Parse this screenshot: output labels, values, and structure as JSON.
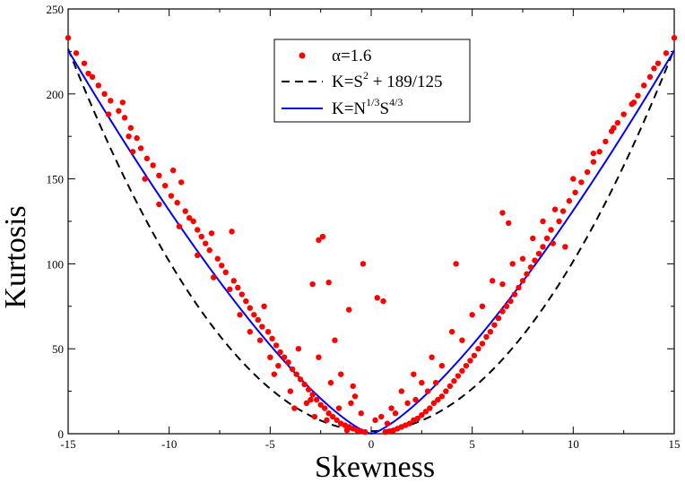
{
  "chart_data": {
    "type": "scatter",
    "xlabel": "Skewness",
    "ylabel": "Kurtosis",
    "xlim": [
      -15,
      15
    ],
    "ylim": [
      0,
      250
    ],
    "x_ticks": [
      "-15",
      "-10",
      "-5",
      "0",
      "5",
      "10",
      "15"
    ],
    "y_ticks": [
      "0",
      "50",
      "100",
      "150",
      "200",
      "250"
    ],
    "legend_position": "top-center",
    "legend": [
      {
        "marker": "dot",
        "color": "#ff0000",
        "parts": [
          "α=1.6"
        ]
      },
      {
        "marker": "dashed-line",
        "color": "#000000",
        "parts": [
          "K=S",
          "2",
          " + 189/125"
        ]
      },
      {
        "marker": "solid-line",
        "color": "#0000ff",
        "parts": [
          "K=N",
          "1/3",
          "S",
          "4/3"
        ]
      }
    ],
    "curves": [
      {
        "name": "K=S^2 + 189/125",
        "style": "dashed",
        "color": "#000000",
        "formula": "S^2 + 1.512"
      },
      {
        "name": "K=N^(1/3) S^(4/3)",
        "style": "solid",
        "color": "#0000ff",
        "formula": "|S|^(4/3) * 6.1"
      }
    ],
    "series": [
      {
        "name": "α=1.6",
        "color": "#ff0000",
        "points": [
          [
            -15,
            233
          ],
          [
            -14.6,
            224
          ],
          [
            -14.2,
            218
          ],
          [
            -13.8,
            210
          ],
          [
            -13.5,
            205
          ],
          [
            -13.2,
            200
          ],
          [
            -12.9,
            196
          ],
          [
            -12.5,
            190
          ],
          [
            -12.2,
            186
          ],
          [
            -12.3,
            195
          ],
          [
            -11.9,
            180
          ],
          [
            -11.6,
            174
          ],
          [
            -11.8,
            166
          ],
          [
            -11.4,
            168
          ],
          [
            -11.1,
            162
          ],
          [
            -10.8,
            158
          ],
          [
            -10.5,
            152
          ],
          [
            -9.8,
            155
          ],
          [
            -10.2,
            146
          ],
          [
            -9.9,
            140
          ],
          [
            -9.6,
            136
          ],
          [
            -9.4,
            148
          ],
          [
            -9.2,
            131
          ],
          [
            -9.0,
            127
          ],
          [
            -8.8,
            125
          ],
          [
            -8.6,
            120
          ],
          [
            -8.4,
            116
          ],
          [
            -8.2,
            112
          ],
          [
            -8.0,
            108
          ],
          [
            -7.9,
            118
          ],
          [
            -7.6,
            103
          ],
          [
            -7.4,
            99
          ],
          [
            -7.2,
            95
          ],
          [
            -6.9,
            119
          ],
          [
            -6.8,
            90
          ],
          [
            -6.6,
            86
          ],
          [
            -6.4,
            82
          ],
          [
            -6.2,
            78
          ],
          [
            -6.0,
            74
          ],
          [
            -5.8,
            70
          ],
          [
            -5.6,
            67
          ],
          [
            -5.4,
            63
          ],
          [
            -5.3,
            75
          ],
          [
            -5.1,
            60
          ],
          [
            -4.9,
            56
          ],
          [
            -4.7,
            52
          ],
          [
            -4.5,
            48
          ],
          [
            -4.3,
            45
          ],
          [
            -4.1,
            42
          ],
          [
            -3.9,
            38
          ],
          [
            -3.7,
            35
          ],
          [
            -3.5,
            32
          ],
          [
            -3.3,
            29
          ],
          [
            -3.1,
            26
          ],
          [
            -2.9,
            23
          ],
          [
            -2.7,
            20
          ],
          [
            -2.5,
            17
          ],
          [
            -2.3,
            15
          ],
          [
            -2.1,
            12
          ],
          [
            -1.9,
            10
          ],
          [
            -1.7,
            8
          ],
          [
            -1.5,
            6
          ],
          [
            -1.3,
            5
          ],
          [
            -1.1,
            4
          ],
          [
            -0.9,
            3
          ],
          [
            -0.7,
            2
          ],
          [
            -0.5,
            1.5
          ],
          [
            -0.3,
            1
          ],
          [
            -2.4,
            116
          ],
          [
            -2.6,
            114
          ],
          [
            -2.1,
            89
          ],
          [
            -2.9,
            88
          ],
          [
            -1.1,
            73
          ],
          [
            -0.4,
            100
          ],
          [
            0.3,
            80
          ],
          [
            0.6,
            78
          ],
          [
            -1.8,
            55
          ],
          [
            -2.6,
            45
          ],
          [
            -3.6,
            50
          ],
          [
            -4.6,
            40
          ],
          [
            -1.5,
            35
          ],
          [
            -0.9,
            28
          ],
          [
            -2.0,
            30
          ],
          [
            -3.0,
            20
          ],
          [
            -4.0,
            25
          ],
          [
            -1.0,
            18
          ],
          [
            -0.5,
            12
          ],
          [
            0.2,
            8
          ],
          [
            -0.8,
            22
          ],
          [
            -1.6,
            15
          ],
          [
            -2.8,
            10
          ],
          [
            -3.8,
            15
          ],
          [
            -5.0,
            45
          ],
          [
            -6.0,
            60
          ],
          [
            -7.0,
            85
          ],
          [
            -7.8,
            92
          ],
          [
            -8.6,
            105
          ],
          [
            -9.5,
            122
          ],
          [
            -10.5,
            135
          ],
          [
            -11.2,
            150
          ],
          [
            -12.0,
            175
          ],
          [
            -13.0,
            188
          ],
          [
            -14.0,
            212
          ],
          [
            -6.5,
            70
          ],
          [
            -5.5,
            55
          ],
          [
            -4.8,
            35
          ],
          [
            -3.2,
            18
          ],
          [
            -2.2,
            8
          ],
          [
            -1.2,
            2
          ],
          [
            15,
            233
          ],
          [
            14.6,
            224
          ],
          [
            14.2,
            218
          ],
          [
            13.8,
            210
          ],
          [
            13.5,
            205
          ],
          [
            13.2,
            199
          ],
          [
            12.9,
            194
          ],
          [
            12.5,
            188
          ],
          [
            12.2,
            183
          ],
          [
            11.9,
            178
          ],
          [
            11.6,
            172
          ],
          [
            11.3,
            166
          ],
          [
            11.0,
            160
          ],
          [
            10.7,
            154
          ],
          [
            10.4,
            148
          ],
          [
            10.1,
            142
          ],
          [
            9.8,
            137
          ],
          [
            9.5,
            131
          ],
          [
            9.3,
            125
          ],
          [
            9.1,
            132
          ],
          [
            8.9,
            120
          ],
          [
            8.7,
            115
          ],
          [
            8.5,
            110
          ],
          [
            8.3,
            106
          ],
          [
            8.1,
            102
          ],
          [
            7.9,
            98
          ],
          [
            7.7,
            94
          ],
          [
            7.5,
            90
          ],
          [
            7.3,
            86
          ],
          [
            7.1,
            82
          ],
          [
            6.9,
            78
          ],
          [
            6.5,
            130
          ],
          [
            6.8,
            124
          ],
          [
            6.7,
            75
          ],
          [
            6.5,
            72
          ],
          [
            6.3,
            68
          ],
          [
            6.1,
            64
          ],
          [
            5.9,
            60
          ],
          [
            5.7,
            57
          ],
          [
            5.5,
            53
          ],
          [
            5.3,
            50
          ],
          [
            5.1,
            46
          ],
          [
            4.9,
            43
          ],
          [
            4.7,
            40
          ],
          [
            4.5,
            37
          ],
          [
            4.3,
            34
          ],
          [
            4.1,
            31
          ],
          [
            3.9,
            28
          ],
          [
            3.7,
            25
          ],
          [
            3.5,
            22
          ],
          [
            3.3,
            20
          ],
          [
            3.1,
            18
          ],
          [
            2.9,
            15
          ],
          [
            2.7,
            13
          ],
          [
            2.5,
            11
          ],
          [
            2.3,
            9
          ],
          [
            2.1,
            8
          ],
          [
            1.9,
            6
          ],
          [
            1.7,
            5
          ],
          [
            1.5,
            4
          ],
          [
            1.3,
            3
          ],
          [
            1.1,
            2
          ],
          [
            0.9,
            1.5
          ],
          [
            0.7,
            1
          ],
          [
            4.2,
            100
          ],
          [
            2.1,
            35
          ],
          [
            3.0,
            45
          ],
          [
            4.0,
            60
          ],
          [
            5.0,
            70
          ],
          [
            6.0,
            90
          ],
          [
            7.0,
            100
          ],
          [
            8.0,
            115
          ],
          [
            9.0,
            112
          ],
          [
            9.6,
            110
          ],
          [
            1.5,
            25
          ],
          [
            2.5,
            30
          ],
          [
            1.0,
            15
          ],
          [
            0.5,
            10
          ],
          [
            3.5,
            40
          ],
          [
            4.5,
            55
          ],
          [
            5.5,
            75
          ],
          [
            6.5,
            88
          ],
          [
            7.5,
            103
          ],
          [
            8.5,
            125
          ],
          [
            10.0,
            150
          ],
          [
            11.0,
            165
          ],
          [
            12.0,
            180
          ],
          [
            13.0,
            195
          ],
          [
            14.0,
            215
          ],
          [
            1.2,
            12
          ],
          [
            2.2,
            20
          ],
          [
            3.2,
            30
          ],
          [
            0.8,
            6
          ],
          [
            1.8,
            18
          ],
          [
            2.8,
            25
          ]
        ]
      }
    ]
  }
}
